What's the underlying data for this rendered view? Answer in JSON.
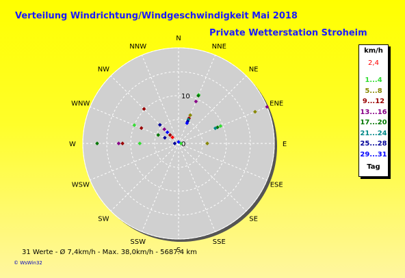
{
  "title": "Verteilung Windrichtung/Windgeschwindigkeit  Mai 2018",
  "subtitle": "Private Wetterstation Stroheim",
  "legend": {
    "header": "km/h",
    "value_red": "2,4",
    "entries": [
      {
        "label": "1...4",
        "color": "#33dd33"
      },
      {
        "label": "5...8",
        "color": "#888800"
      },
      {
        "label": "9...12",
        "color": "#990000"
      },
      {
        "label": "13...16",
        "color": "#880088"
      },
      {
        "label": "17...20",
        "color": "#007700"
      },
      {
        "label": "21...24",
        "color": "#008888"
      },
      {
        "label": "25...28",
        "color": "#000099"
      },
      {
        "label": "29...31",
        "color": "#0000ff"
      }
    ],
    "footer": "Tag"
  },
  "footer": "31 Werte   -   Ø 7,4km/h  -  Max. 38,0km/h  -   5687.4 km",
  "copyright": "© WsWin32",
  "chart_data": {
    "type": "scatter",
    "polar": true,
    "directions": [
      "N",
      "NNE",
      "NE",
      "ENE",
      "E",
      "ESE",
      "SE",
      "SSE",
      "S",
      "SSW",
      "SW",
      "WSW",
      "W",
      "WNW",
      "NW",
      "NNW"
    ],
    "rings": [
      5,
      10,
      15,
      20
    ],
    "ring_labels": [
      "0",
      "10"
    ],
    "points": [
      {
        "dir": "NNE",
        "value": 11.0,
        "color": "#33dd33"
      },
      {
        "dir": "NNE",
        "value": 10.8,
        "color": "#007700"
      },
      {
        "dir": "NNE",
        "value": 9.5,
        "color": "#880088"
      },
      {
        "dir": "NNE",
        "value": 6.4,
        "color": "#888800"
      },
      {
        "dir": "NNE",
        "value": 5.7,
        "color": "#990000"
      },
      {
        "dir": "NNE",
        "value": 5.4,
        "color": "#008888"
      },
      {
        "dir": "NNE",
        "value": 5.0,
        "color": "#000099"
      },
      {
        "dir": "NNE",
        "value": 4.6,
        "color": "#0000ff"
      },
      {
        "dir": "ENE",
        "value": 20.0,
        "color": "#880088"
      },
      {
        "dir": "ENE",
        "value": 17.3,
        "color": "#888800"
      },
      {
        "dir": "ENE",
        "value": 9.5,
        "color": "#33dd33"
      },
      {
        "dir": "ENE",
        "value": 8.8,
        "color": "#007700"
      },
      {
        "dir": "ENE",
        "value": 8.3,
        "color": "#008888"
      },
      {
        "dir": "E",
        "value": 6.0,
        "color": "#888800"
      },
      {
        "dir": "W",
        "value": 17.0,
        "color": "#007700"
      },
      {
        "dir": "W",
        "value": 12.5,
        "color": "#880088"
      },
      {
        "dir": "W",
        "value": 11.7,
        "color": "#990000"
      },
      {
        "dir": "W",
        "value": 8.1,
        "color": "#33dd33"
      },
      {
        "dir": "W",
        "value": 0.8,
        "color": "#000099"
      },
      {
        "dir": "WNW",
        "value": 10.0,
        "color": "#33dd33"
      },
      {
        "dir": "WNW",
        "value": 8.4,
        "color": "#990000"
      },
      {
        "dir": "WNW",
        "value": 4.6,
        "color": "#007700"
      },
      {
        "dir": "WNW",
        "value": 3.1,
        "color": "#000099"
      },
      {
        "dir": "NW",
        "value": 10.2,
        "color": "#990000"
      },
      {
        "dir": "NW",
        "value": 5.5,
        "color": "#000099"
      },
      {
        "dir": "NW",
        "value": 4.2,
        "color": "#880088"
      },
      {
        "dir": "NW",
        "value": 3.3,
        "color": "#0000ff"
      },
      {
        "dir": "NW",
        "value": 2.5,
        "color": "#990000"
      },
      {
        "dir": "NW",
        "value": 1.8,
        "color": "#ff0000"
      },
      {
        "dir": "E",
        "value": 0.5,
        "color": "#33dd33"
      },
      {
        "dir": "N",
        "value": 0.3,
        "color": "#0000ff"
      }
    ]
  }
}
